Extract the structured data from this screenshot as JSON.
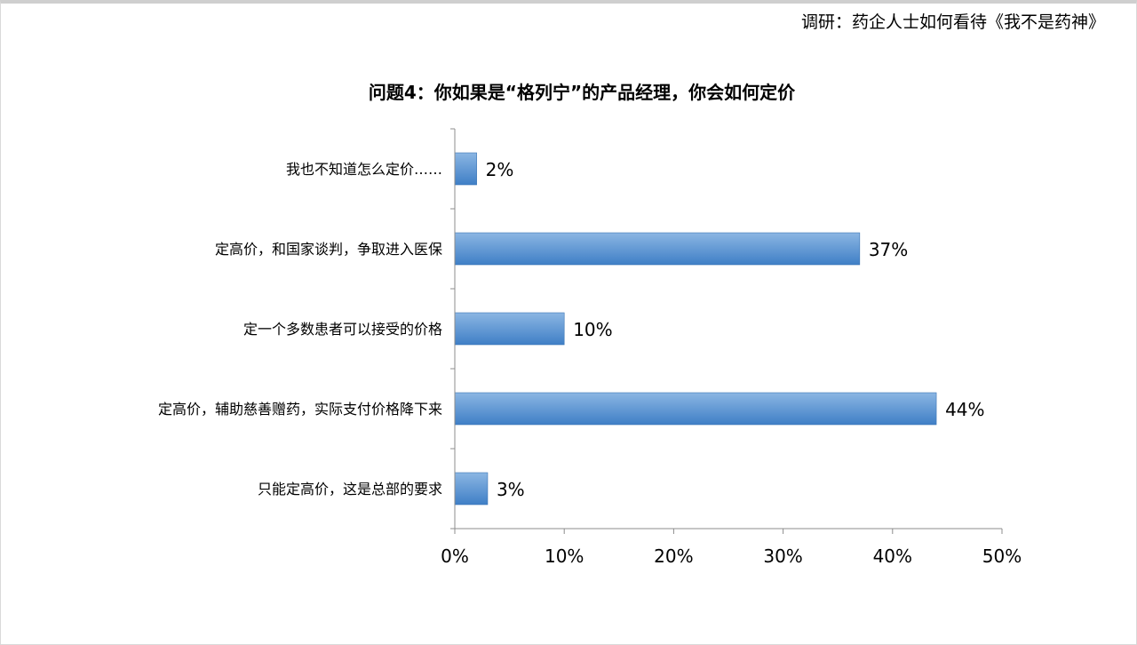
{
  "header": {
    "title": "调研：药企人士如何看待《我不是药神》"
  },
  "colors": {
    "bar_top": "#8bb6e3",
    "bar_bottom": "#3f7fc6",
    "bar_edge": "#3a74b5",
    "axis": "#8c8c8c"
  },
  "chart_data": {
    "type": "bar",
    "orientation": "horizontal",
    "title": "问题4：你如果是“格列宁”的产品经理，你会如何定价",
    "categories": [
      "我也不知道怎么定价……",
      "定高价，和国家谈判，争取进入医保",
      "定一个多数患者可以接受的价格",
      "定高价，辅助慈善赠药，实际支付价格降下来",
      "只能定高价，这是总部的要求"
    ],
    "values": [
      2,
      37,
      10,
      44,
      3
    ],
    "data_labels": [
      "2%",
      "37%",
      "10%",
      "44%",
      "3%"
    ],
    "xlim": [
      0,
      50
    ],
    "xticks": [
      0,
      10,
      20,
      30,
      40,
      50
    ],
    "xtick_labels": [
      "0%",
      "10%",
      "20%",
      "30%",
      "40%",
      "50%"
    ],
    "xlabel": "",
    "ylabel": "",
    "grid": false,
    "legend": "none"
  }
}
